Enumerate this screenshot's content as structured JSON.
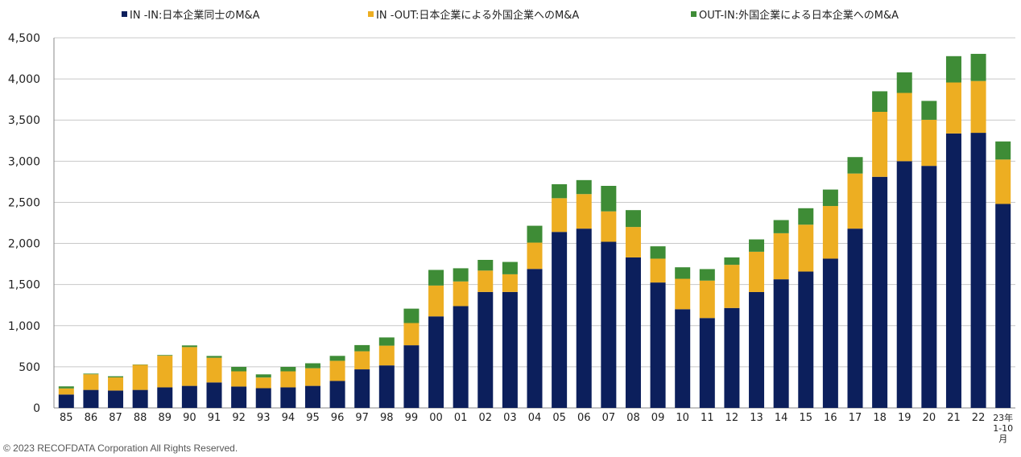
{
  "chart_data": {
    "type": "bar",
    "stacked": true,
    "categories": [
      "85",
      "86",
      "87",
      "88",
      "89",
      "90",
      "91",
      "92",
      "93",
      "94",
      "95",
      "96",
      "97",
      "98",
      "99",
      "00",
      "01",
      "02",
      "03",
      "04",
      "05",
      "06",
      "07",
      "08",
      "09",
      "10",
      "11",
      "12",
      "13",
      "14",
      "15",
      "16",
      "17",
      "18",
      "19",
      "20",
      "21",
      "22",
      "23年\n1-10\n月"
    ],
    "series": [
      {
        "name": "IN -IN:日本企業同士のM&A",
        "color": "#0c1f5c",
        "values": [
          163,
          219,
          211,
          219,
          250,
          268,
          310,
          260,
          240,
          250,
          268,
          328,
          469,
          517,
          762,
          1113,
          1238,
          1410,
          1410,
          1690,
          2140,
          2180,
          2020,
          1830,
          1525,
          1200,
          1093,
          1215,
          1409,
          1564,
          1658,
          1815,
          2180,
          2810,
          3000,
          2943,
          3337,
          3345,
          2480
        ]
      },
      {
        "name": "IN -OUT:日本企業による外国企業へのM&A",
        "color": "#edae22",
        "values": [
          74,
          190,
          160,
          305,
          385,
          472,
          300,
          185,
          130,
          195,
          215,
          245,
          220,
          240,
          270,
          375,
          300,
          260,
          215,
          320,
          410,
          420,
          370,
          370,
          290,
          370,
          455,
          525,
          490,
          560,
          570,
          640,
          670,
          790,
          830,
          560,
          620,
          630,
          540
        ]
      },
      {
        "name": "OUT-IN:外国企業による日本企業へのM&A",
        "color": "#3e8c36",
        "values": [
          25,
          8,
          14,
          4,
          8,
          20,
          22,
          54,
          38,
          54,
          60,
          60,
          75,
          100,
          175,
          190,
          160,
          130,
          150,
          205,
          170,
          170,
          310,
          205,
          150,
          140,
          140,
          90,
          150,
          160,
          200,
          200,
          200,
          250,
          250,
          230,
          320,
          330,
          220
        ]
      }
    ],
    "ylim": [
      0,
      4500
    ],
    "yticks": [
      0,
      500,
      1000,
      1500,
      2000,
      2500,
      3000,
      3500,
      4000,
      4500
    ],
    "ytick_labels": [
      "0",
      "500",
      "1,000",
      "1,500",
      "2,000",
      "2,500",
      "3,000",
      "3,500",
      "4,000",
      "4,500"
    ],
    "grid": true,
    "legend_position": "top"
  },
  "copyright": "© 2023 RECOFDATA Corporation All Rights Reserved."
}
